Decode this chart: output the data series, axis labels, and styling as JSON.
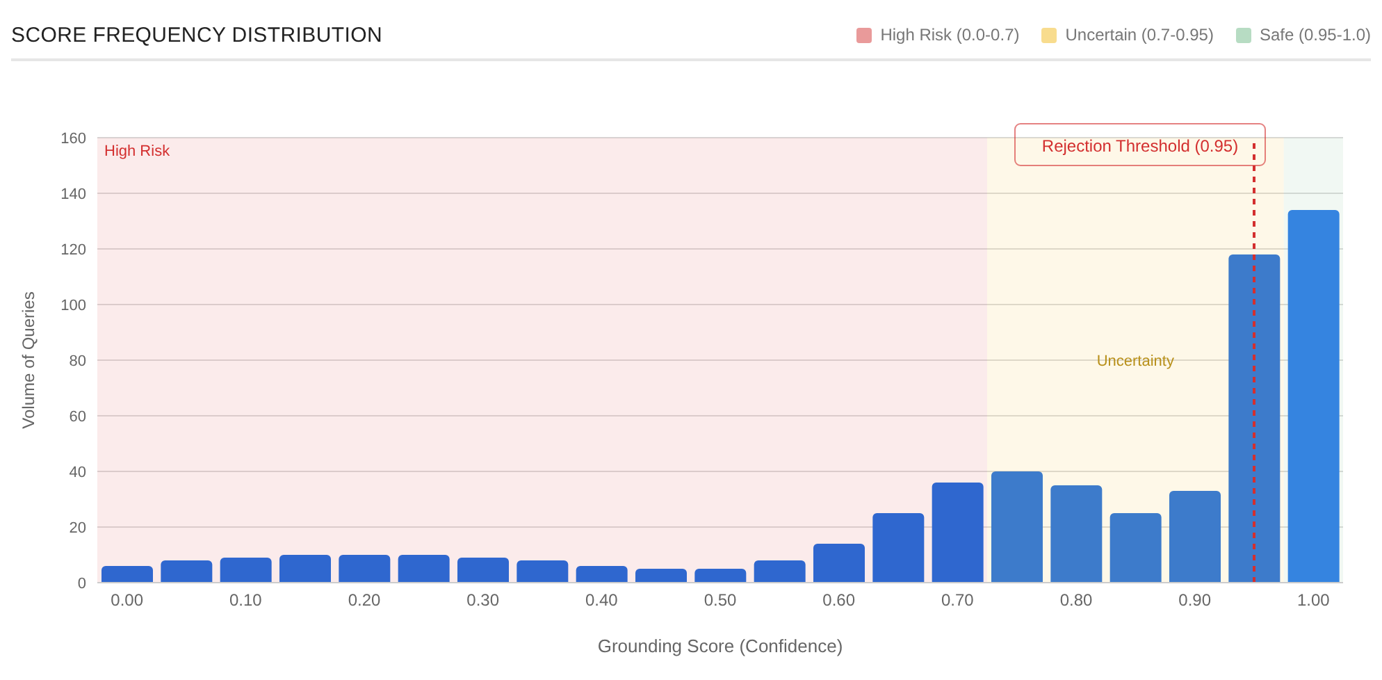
{
  "chart_data": {
    "type": "bar",
    "title": "SCORE FREQUENCY DISTRIBUTION",
    "xlabel": "Grounding Score (Confidence)",
    "ylabel": "Volume of Queries",
    "x": [
      0,
      0.05,
      0.1,
      0.15,
      0.2,
      0.25,
      0.3,
      0.35,
      0.4,
      0.45,
      0.5,
      0.55,
      0.6,
      0.65,
      0.7,
      0.75,
      0.8,
      0.85,
      0.9,
      0.95,
      1
    ],
    "values": [
      6,
      8,
      9,
      10,
      10,
      10,
      9,
      8,
      6,
      5,
      5,
      8,
      14,
      25,
      36,
      40,
      35,
      25,
      33,
      118,
      134
    ],
    "colors": [
      "#2f67cf",
      "#2f67cf",
      "#2f67cf",
      "#2f67cf",
      "#2f67cf",
      "#2f67cf",
      "#2f67cf",
      "#2f67cf",
      "#2f67cf",
      "#2f67cf",
      "#2f67cf",
      "#2f67cf",
      "#2f67cf",
      "#2f67cf",
      "#2f67cf",
      "#3d7bcb",
      "#3d7bcb",
      "#3d7bcb",
      "#3d7bcb",
      "#3d7bcb",
      "#3584e0"
    ],
    "xlim": [
      -0.025,
      1.025
    ],
    "xticks": [
      {
        "value": 0,
        "label": "0.00"
      },
      {
        "value": 0.1,
        "label": "0.10"
      },
      {
        "value": 0.2,
        "label": "0.20"
      },
      {
        "value": 0.3,
        "label": "0.30"
      },
      {
        "value": 0.4,
        "label": "0.40"
      },
      {
        "value": 0.5,
        "label": "0.50"
      },
      {
        "value": 0.6,
        "label": "0.60"
      },
      {
        "value": 0.7,
        "label": "0.70"
      },
      {
        "value": 0.8,
        "label": "0.80"
      },
      {
        "value": 0.9,
        "label": "0.90"
      },
      {
        "value": 1,
        "label": "1.00"
      }
    ],
    "ylim": [
      0,
      160
    ],
    "yticks": [
      0,
      20,
      40,
      60,
      80,
      100,
      120,
      140,
      160
    ],
    "grid": "y",
    "bands": [
      {
        "axis": "x",
        "from": -0.025,
        "to": 0.725,
        "label": "High Risk",
        "color": "#e99a9a"
      },
      {
        "axis": "x",
        "from": 0.725,
        "to": 0.975,
        "label": "Uncertainty",
        "color": "#f8dc8e"
      },
      {
        "axis": "x",
        "from": 0.975,
        "to": 1.025,
        "label": null,
        "color": "#b7dcc3"
      }
    ],
    "ref_lines": [
      {
        "axis": "x",
        "value": 0.95,
        "label": "Rejection Threshold (0.95)",
        "color": "#d32f2f",
        "line_style": "dashed"
      }
    ],
    "annotations": [
      "High Risk (0.0-0.7)",
      "Uncertain (0.7-0.95)",
      "Safe (0.95-1.0)"
    ]
  }
}
